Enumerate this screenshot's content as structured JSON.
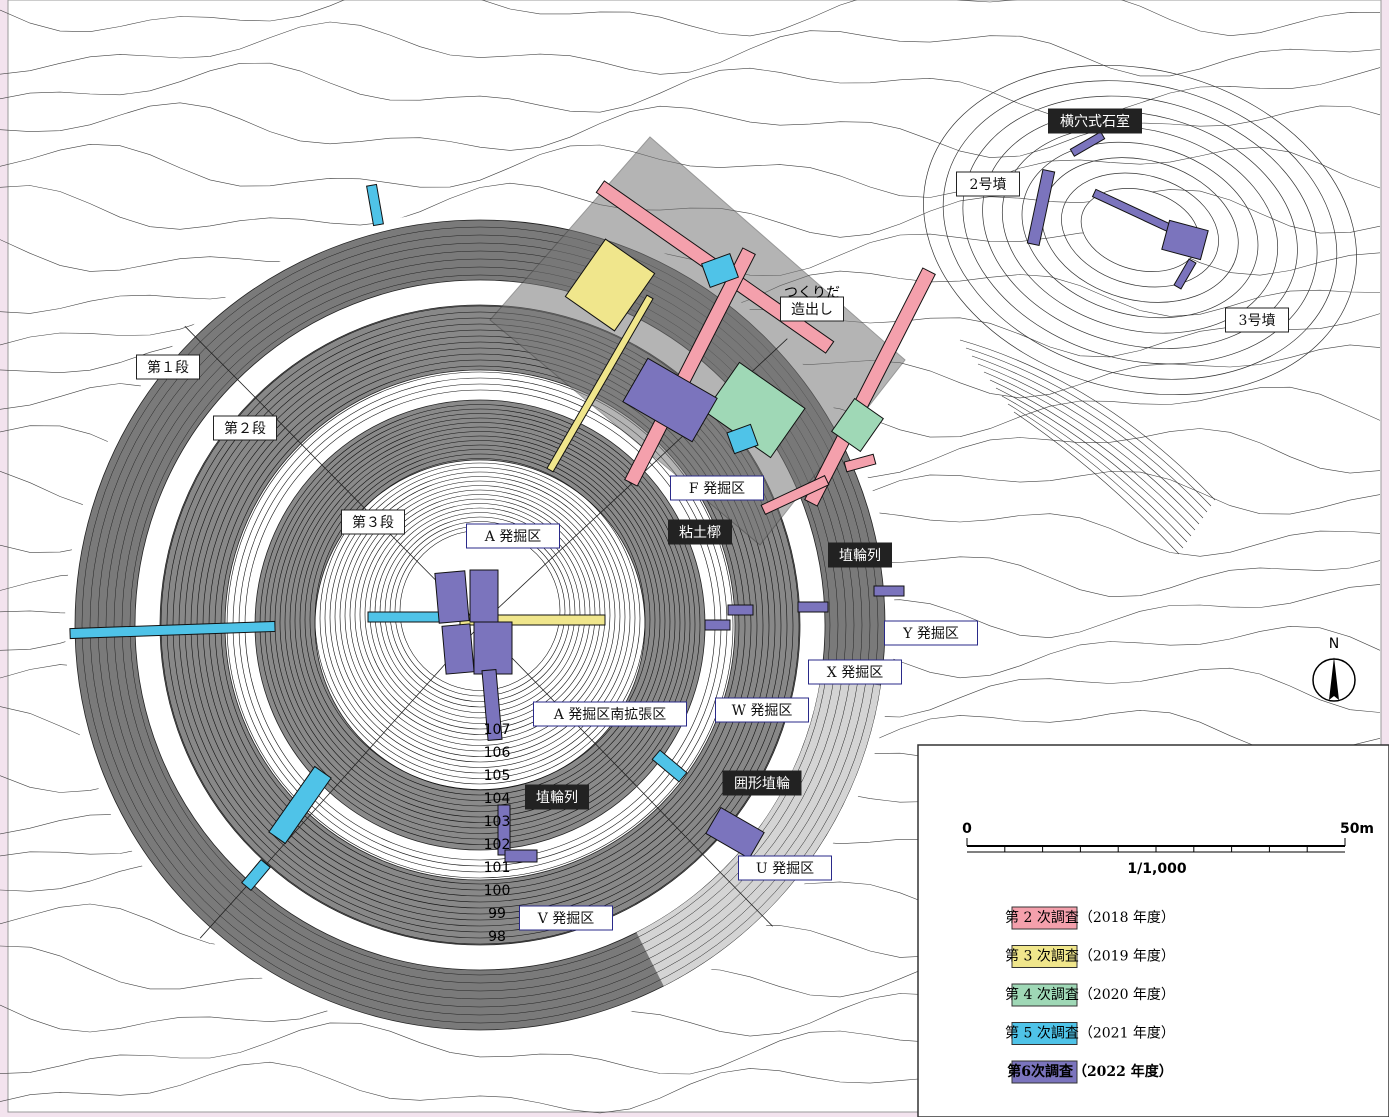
{
  "map": {
    "tiers": [
      "第１段",
      "第２段",
      "第３段"
    ],
    "mounds": [
      "2号墳",
      "3号墳"
    ],
    "tsukuridashi": {
      "label": "造出し",
      "ruby": "つくりだ"
    },
    "features": [
      "横穴式石室",
      "粘土槨",
      "埴輪列",
      "埴輪列",
      "囲形埴輪"
    ],
    "excavation_areas": [
      "F 発掘区",
      "A 発掘区",
      "Y 発掘区",
      "X 発掘区",
      "W 発掘区",
      "A 発掘区南拡張区",
      "U 発掘区",
      "V 発掘区"
    ],
    "contour_labels": [
      "107",
      "106",
      "105",
      "104",
      "103",
      "102",
      "101",
      "100",
      "99",
      "98"
    ],
    "north": "N",
    "scale": {
      "start": "0",
      "end": "50m",
      "ratio": "1/1,000"
    },
    "legend": [
      {
        "label": "第 2 次調査（2018 年度）",
        "color": "#f4a0ac"
      },
      {
        "label": "第 3 次調査（2019 年度）",
        "color": "#f0e68c"
      },
      {
        "label": "第 4 次調査（2020 年度）",
        "color": "#9fd8b6"
      },
      {
        "label": "第 5 次調査（2021 年度）",
        "color": "#4fc3e8"
      },
      {
        "label": "第6次調査（2022 年度）",
        "color": "#7b74bd"
      }
    ]
  }
}
